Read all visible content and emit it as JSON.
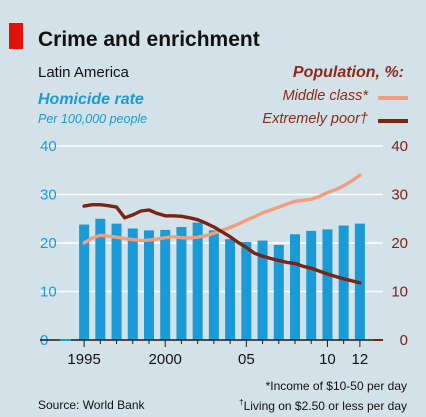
{
  "header": {
    "title": "Crime and enrichment",
    "subtitle": "Latin America"
  },
  "left_axis": {
    "title": "Homicide rate",
    "subtitle": "Per 100,000 people"
  },
  "right_axis": {
    "title": "Population, %:"
  },
  "legend": {
    "middle_class": "Middle class*",
    "extremely_poor": "Extremely poor†"
  },
  "footer": {
    "source": "Source: World Bank",
    "note1": "*Income of $10-50 per day",
    "note2_mark": "†",
    "note2": "Living on $2.50 or less per day"
  },
  "colors": {
    "bars": "#1a9ad6",
    "middle_class": "#f39c7e",
    "extremely_poor": "#7a2413",
    "background": "#d3e1e8",
    "title_bar": "#e3120b"
  },
  "chart_data": {
    "type": "bar+line",
    "title": "Crime and enrichment",
    "subtitle": "Latin America",
    "x_ticks": [
      1995,
      2000,
      2005,
      2010,
      2012
    ],
    "x_tick_labels": [
      "1995",
      "2000",
      "05",
      "10",
      "12"
    ],
    "xlim": [
      1994.5,
      2012.5
    ],
    "left_axis": {
      "label": "Homicide rate",
      "unit": "Per 100,000 people",
      "ylim": [
        0,
        40
      ],
      "ticks": [
        0,
        10,
        20,
        30,
        40
      ]
    },
    "right_axis": {
      "label": "Population, %:",
      "ylim": [
        0,
        40
      ],
      "ticks": [
        0,
        10,
        20,
        30,
        40
      ]
    },
    "grid": true,
    "bars": {
      "name": "Homicide rate",
      "x": [
        1995,
        1996,
        1997,
        1998,
        1999,
        2000,
        2001,
        2002,
        2003,
        2004,
        2005,
        2006,
        2007,
        2008,
        2009,
        2010,
        2011,
        2012
      ],
      "values": [
        23.8,
        25.0,
        24.0,
        23.0,
        22.6,
        22.7,
        23.3,
        24.2,
        22.6,
        20.8,
        20.2,
        20.5,
        19.6,
        21.8,
        22.5,
        22.8,
        23.6,
        24.0
      ]
    },
    "series": [
      {
        "name": "Middle class*",
        "axis": "right",
        "x": [
          1995,
          1995.5,
          1996,
          1996.5,
          1997,
          1997.5,
          1998,
          1998.5,
          1999,
          1999.5,
          2000,
          2000.5,
          2001,
          2001.5,
          2002,
          2002.5,
          2003,
          2003.5,
          2004,
          2004.5,
          2005,
          2005.5,
          2006,
          2006.5,
          2007,
          2007.5,
          2008,
          2008.5,
          2009,
          2009.5,
          2010,
          2010.5,
          2011,
          2011.5,
          2012
        ],
        "values": [
          20.0,
          21.0,
          21.6,
          21.4,
          21.2,
          20.9,
          20.7,
          20.5,
          20.6,
          20.8,
          21.1,
          21.3,
          21.1,
          21.0,
          21.2,
          21.5,
          22.0,
          22.6,
          23.2,
          23.9,
          24.7,
          25.4,
          26.2,
          26.8,
          27.4,
          28.0,
          28.6,
          28.8,
          29.0,
          29.6,
          30.4,
          31.0,
          31.8,
          32.8,
          34.0
        ]
      },
      {
        "name": "Extremely poor†",
        "axis": "right",
        "x": [
          1995,
          1995.5,
          1996,
          1996.5,
          1997,
          1997.5,
          1998,
          1998.5,
          1999,
          1999.5,
          2000,
          2000.5,
          2001,
          2001.5,
          2002,
          2002.5,
          2003,
          2003.5,
          2004,
          2004.5,
          2005,
          2005.5,
          2006,
          2006.5,
          2007,
          2007.5,
          2008,
          2008.5,
          2009,
          2009.5,
          2010,
          2010.5,
          2011,
          2011.5,
          2012
        ],
        "values": [
          27.6,
          27.9,
          27.9,
          27.7,
          27.4,
          25.2,
          25.8,
          26.6,
          26.8,
          26.1,
          25.6,
          25.6,
          25.5,
          25.2,
          24.8,
          24.1,
          23.3,
          22.3,
          21.3,
          20.1,
          19.1,
          17.9,
          17.3,
          16.8,
          16.4,
          16.0,
          15.8,
          15.2,
          14.8,
          14.2,
          13.6,
          13.1,
          12.6,
          12.2,
          11.8
        ]
      }
    ]
  }
}
